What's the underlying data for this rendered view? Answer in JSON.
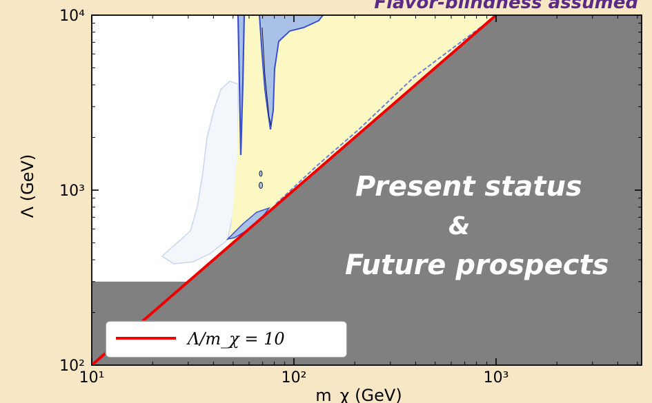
{
  "header": {
    "note": "Flavor-blindness assumed"
  },
  "annotation": {
    "lines": [
      "Present status",
      "&",
      "Future prospects"
    ]
  },
  "chart_data": {
    "type": "area",
    "xlabel": "m_χ (GeV)",
    "ylabel": "Λ (GeV)",
    "x_scale": "log",
    "y_scale": "log",
    "xlim": [
      10,
      5000
    ],
    "ylim": [
      100,
      10000
    ],
    "x_ticks": [
      {
        "value": 10,
        "label": "10¹"
      },
      {
        "value": 100,
        "label": "10²"
      },
      {
        "value": 1000,
        "label": "10³"
      }
    ],
    "y_ticks": [
      {
        "value": 100,
        "label": "10²"
      },
      {
        "value": 1000,
        "label": "10³"
      },
      {
        "value": 10000,
        "label": "10⁴"
      }
    ],
    "legend": {
      "placement": "bottom-left",
      "entries": [
        {
          "label": "Λ/m_χ = 10",
          "color": "#ee0000"
        }
      ]
    },
    "series": [
      {
        "kind": "line",
        "color": "#ee0000",
        "x": [
          10,
          1000
        ],
        "y": [
          100,
          10000
        ]
      }
    ],
    "excluded_region_color": "#808080",
    "excluded_box": {
      "x": [
        10,
        30
      ],
      "y": [
        100,
        300
      ]
    },
    "allowed_region_color": "#fbf8c4",
    "contour_color": "#3a4fd0",
    "colors": {
      "background": "#f7e7c4",
      "plot_bg": "#ffffff",
      "grey": "#808080",
      "red": "#ee0000"
    }
  }
}
